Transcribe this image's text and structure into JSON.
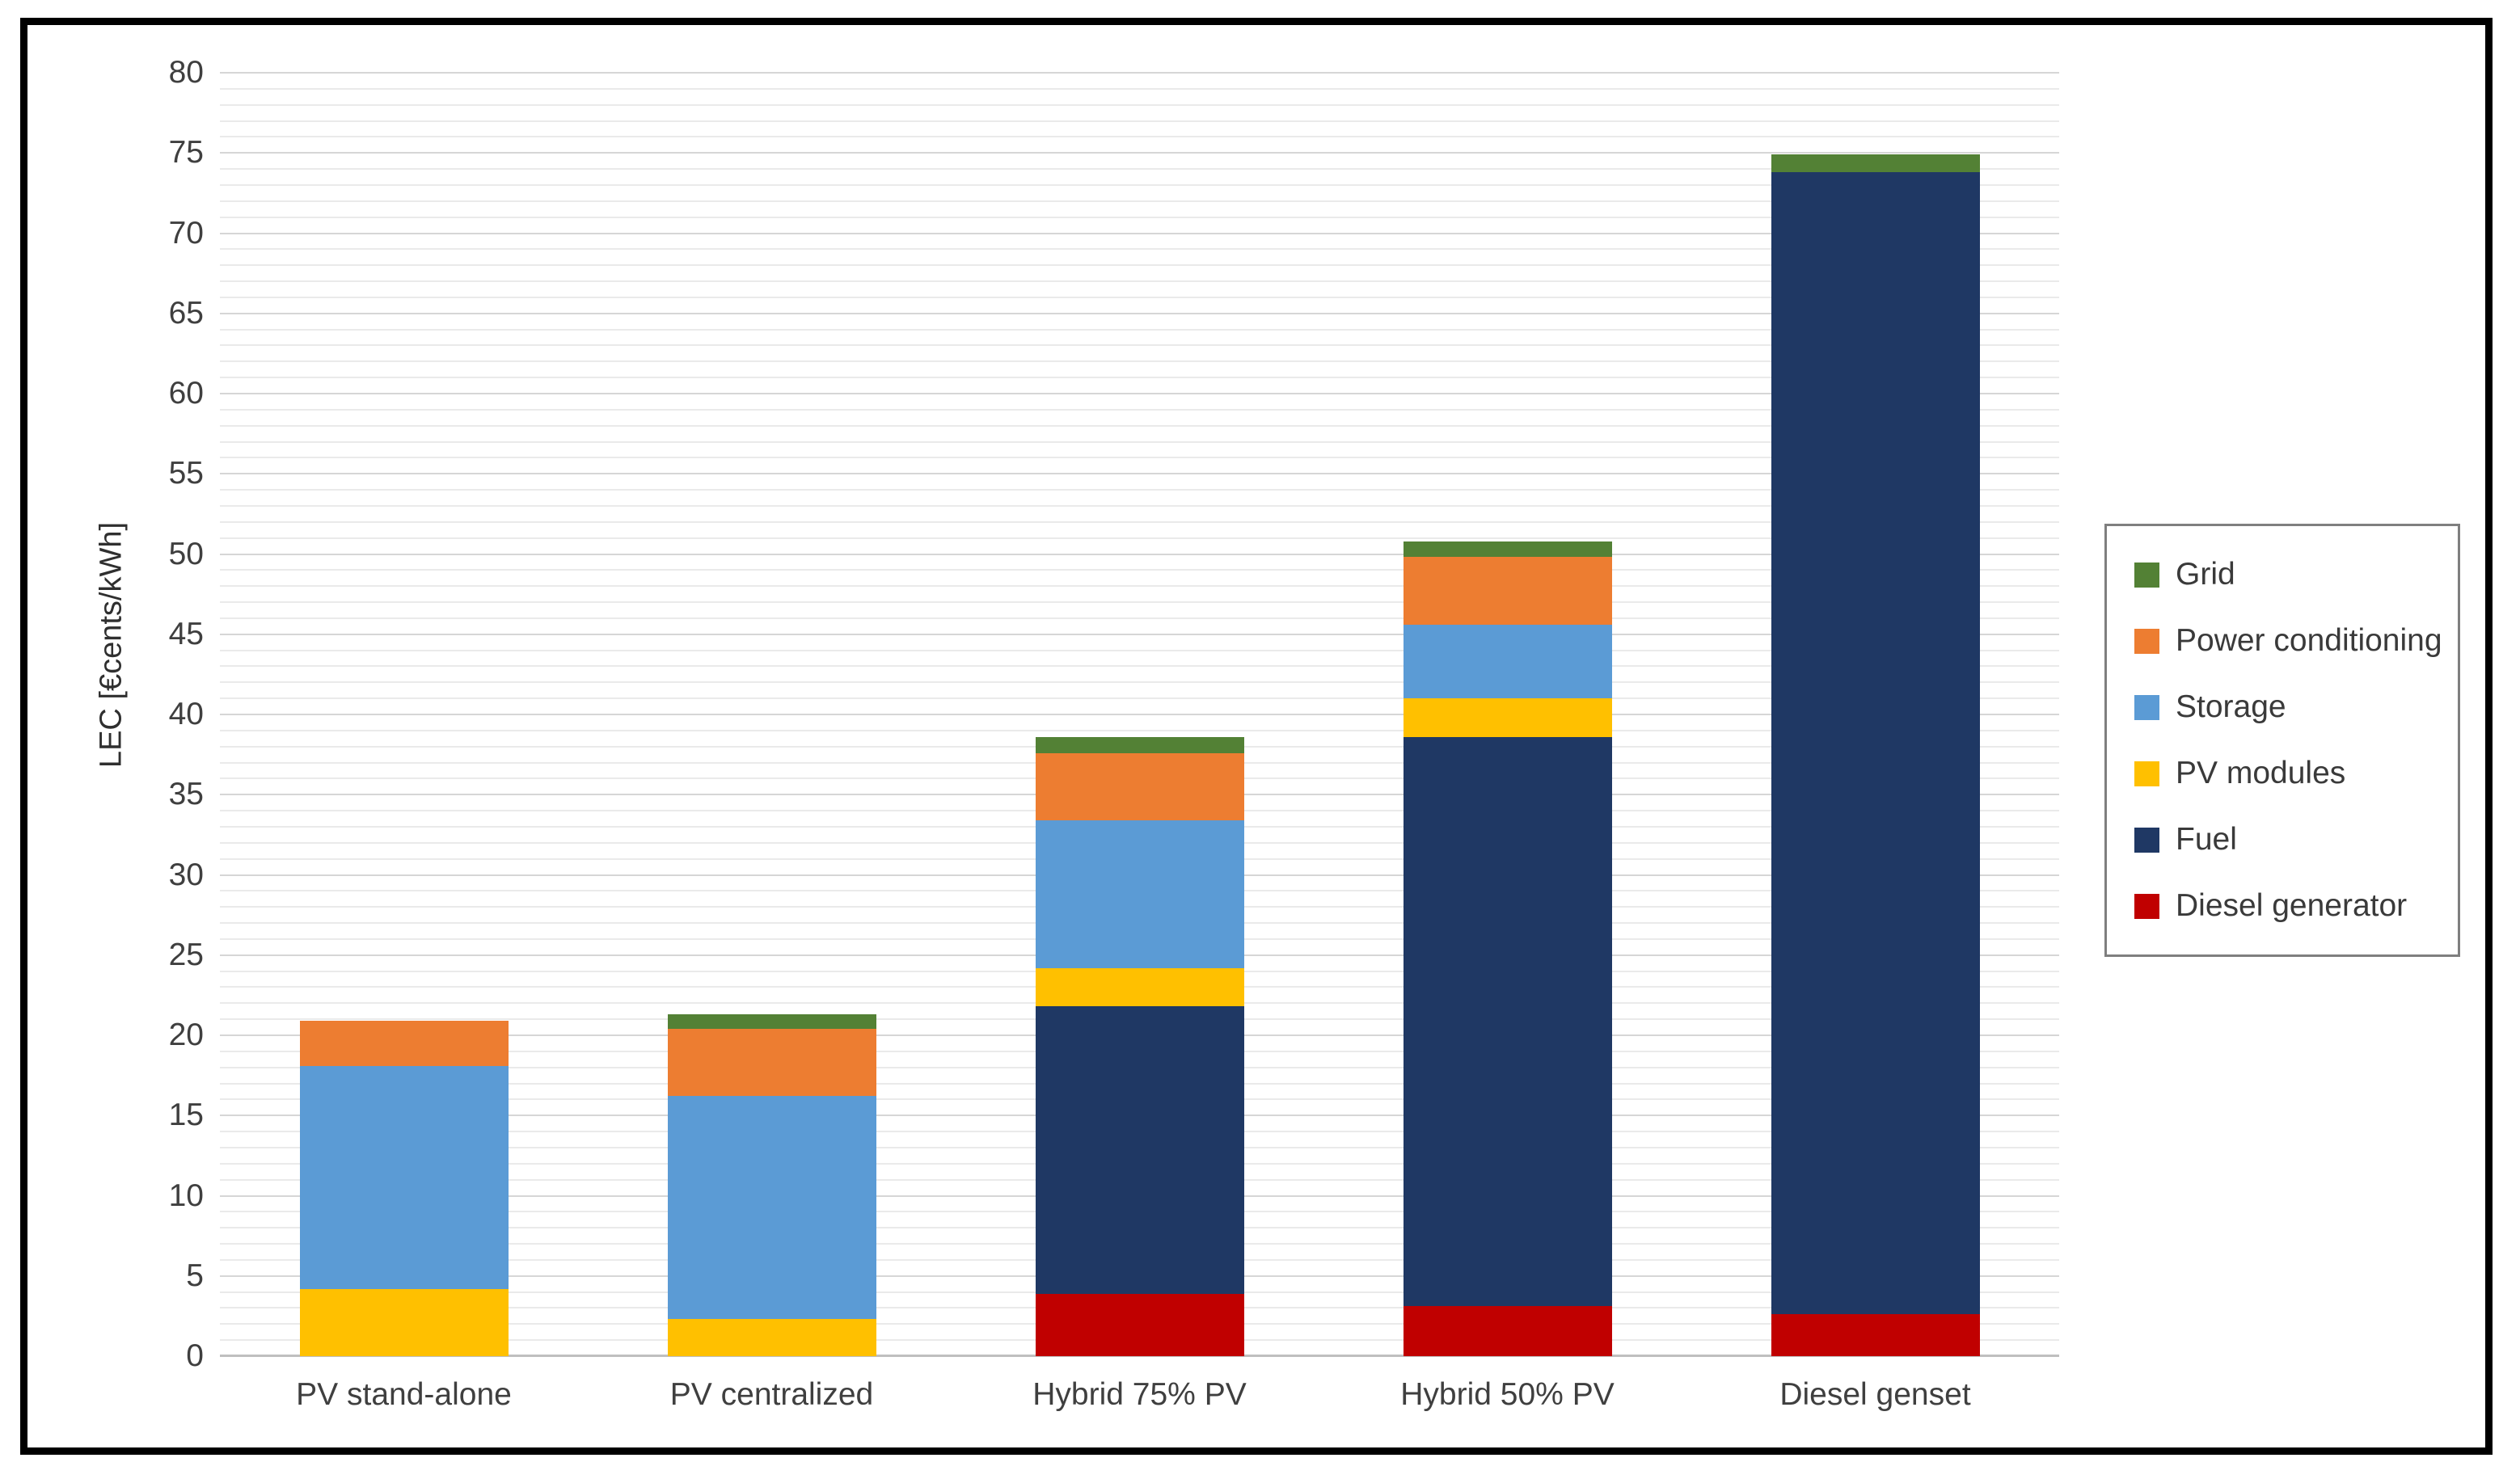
{
  "figure": {
    "background": "#ffffff",
    "border_color": "#000000"
  },
  "chart_data": {
    "type": "bar",
    "stacked": true,
    "title": "",
    "xlabel": "",
    "ylabel": "LEC [€cents/kWh]",
    "ylim": [
      0,
      80
    ],
    "ytick_step": 5,
    "minor_grid_step": 1,
    "grid": true,
    "legend_position": "right",
    "categories": [
      "PV stand-alone",
      "PV centralized",
      "Hybrid 75% PV",
      "Hybrid 50% PV",
      "Diesel genset"
    ],
    "series": [
      {
        "name": "Diesel generator",
        "color": "#C00000",
        "values": [
          0,
          0,
          3.9,
          3.1,
          2.6
        ]
      },
      {
        "name": "Fuel",
        "color": "#1F3864",
        "values": [
          0,
          0,
          17.9,
          35.5,
          71.2
        ]
      },
      {
        "name": "PV modules",
        "color": "#FFC000",
        "values": [
          4.2,
          2.3,
          2.4,
          2.4,
          0
        ]
      },
      {
        "name": "Storage",
        "color": "#5B9BD5",
        "values": [
          13.9,
          13.9,
          9.2,
          4.6,
          0
        ]
      },
      {
        "name": "Power conditioning",
        "color": "#ED7D31",
        "values": [
          2.8,
          4.2,
          4.2,
          4.2,
          0
        ]
      },
      {
        "name": "Grid",
        "color": "#538135",
        "values": [
          0,
          0.9,
          1.0,
          1.0,
          1.1
        ]
      }
    ],
    "legend_order": [
      "Grid",
      "Power conditioning",
      "Storage",
      "PV modules",
      "Fuel",
      "Diesel generator"
    ],
    "ytick_labels": [
      "0",
      "5",
      "10",
      "15",
      "20",
      "25",
      "30",
      "35",
      "40",
      "45",
      "50",
      "55",
      "60",
      "65",
      "70",
      "75",
      "80"
    ]
  },
  "style_colors": {
    "minor_grid": "#EAEAEA",
    "major_grid": "#D6D6D6",
    "baseline": "#BFBFBF",
    "tick_label": "#3F3F3F",
    "legend_border": "#7F7F7F"
  }
}
